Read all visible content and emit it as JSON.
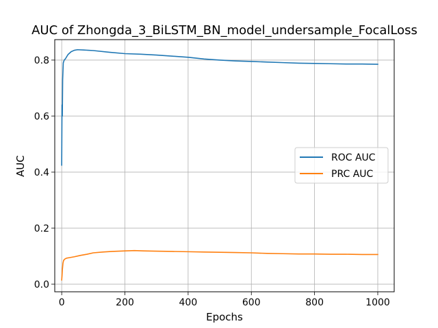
{
  "chart_data": {
    "type": "line",
    "title": "AUC of Zhongda_3_BiLSTM_BN_model_undersample_FocalLoss",
    "xlabel": "Epochs",
    "ylabel": "AUC",
    "xlim": [
      -22,
      1052
    ],
    "ylim": [
      -0.027,
      0.873
    ],
    "xticks": [
      0,
      200,
      400,
      600,
      800,
      1000
    ],
    "xtick_labels": [
      "0",
      "200",
      "400",
      "600",
      "800",
      "1000"
    ],
    "yticks": [
      0.0,
      0.2,
      0.4,
      0.6,
      0.8
    ],
    "ytick_labels": [
      "0.0",
      "0.2",
      "0.4",
      "0.6",
      "0.8"
    ],
    "grid": true,
    "legend_position": "center-right",
    "series": [
      {
        "name": "ROC AUC",
        "color": "#1f77b4",
        "x": [
          0,
          1,
          2,
          3,
          5,
          8,
          12,
          20,
          30,
          40,
          50,
          70,
          100,
          150,
          200,
          250,
          300,
          350,
          400,
          450,
          500,
          550,
          600,
          650,
          700,
          750,
          800,
          850,
          900,
          950,
          1000
        ],
        "y": [
          0.425,
          0.64,
          0.6,
          0.73,
          0.79,
          0.8,
          0.805,
          0.82,
          0.83,
          0.835,
          0.837,
          0.836,
          0.834,
          0.828,
          0.823,
          0.821,
          0.818,
          0.814,
          0.81,
          0.804,
          0.8,
          0.797,
          0.795,
          0.793,
          0.791,
          0.789,
          0.788,
          0.787,
          0.786,
          0.786,
          0.785
        ]
      },
      {
        "name": "PRC AUC",
        "color": "#ff7f0e",
        "x": [
          0,
          1,
          2,
          4,
          6,
          10,
          15,
          25,
          40,
          60,
          80,
          100,
          130,
          160,
          200,
          230,
          260,
          300,
          350,
          400,
          450,
          500,
          550,
          600,
          650,
          700,
          750,
          800,
          850,
          900,
          950,
          1000
        ],
        "y": [
          0.015,
          0.03,
          0.05,
          0.075,
          0.085,
          0.09,
          0.093,
          0.095,
          0.098,
          0.103,
          0.107,
          0.112,
          0.115,
          0.117,
          0.119,
          0.12,
          0.119,
          0.118,
          0.117,
          0.116,
          0.115,
          0.114,
          0.113,
          0.112,
          0.11,
          0.109,
          0.108,
          0.108,
          0.107,
          0.107,
          0.106,
          0.106
        ]
      }
    ]
  }
}
